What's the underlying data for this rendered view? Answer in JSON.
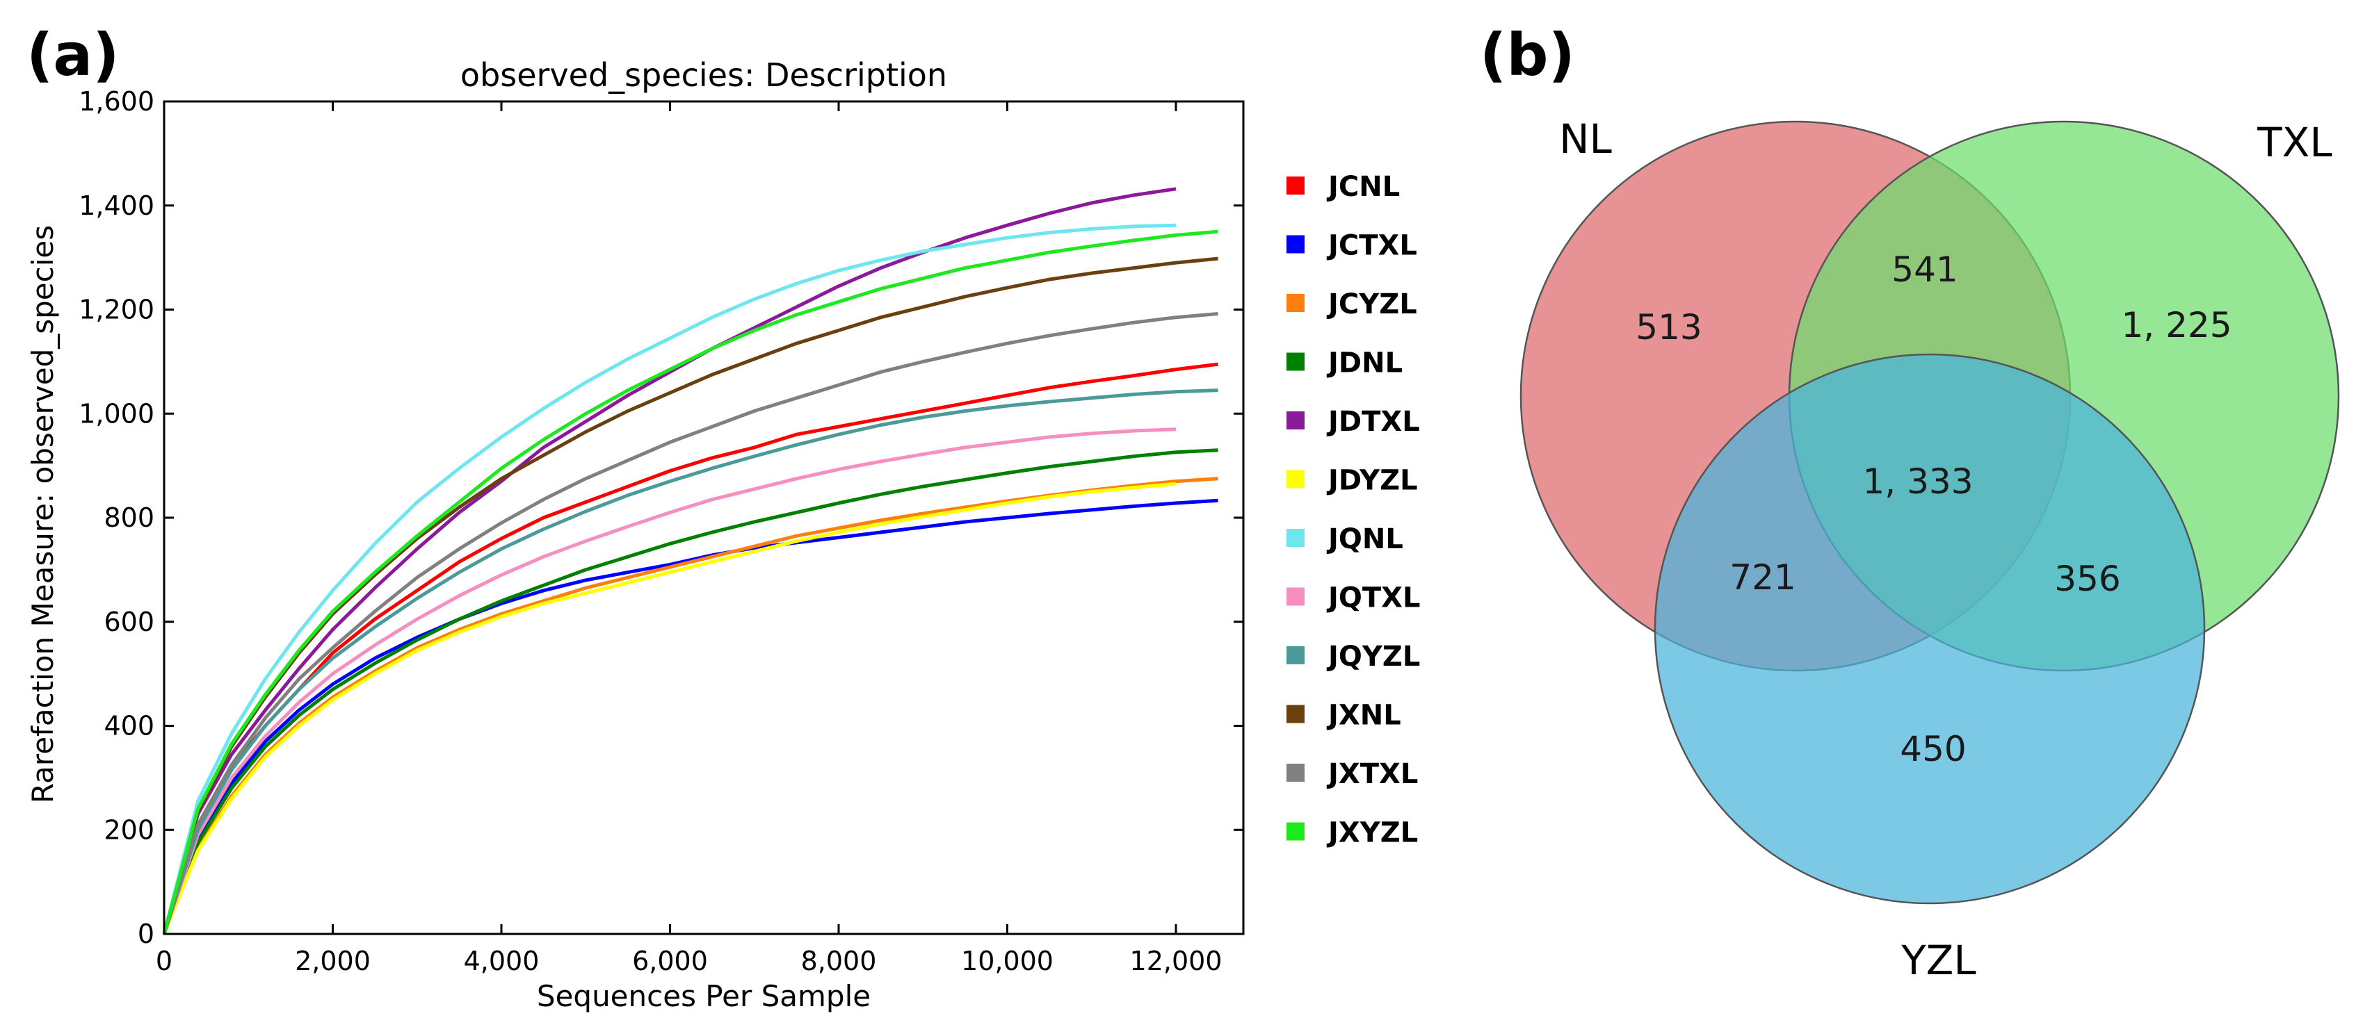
{
  "panels": {
    "a_label": "(a)",
    "b_label": "(b)"
  },
  "chart_data": [
    {
      "type": "line",
      "title": "observed_species: Description",
      "xlabel": "Sequences Per Sample",
      "ylabel": "Rarefaction Measure: observed_species",
      "xlim": [
        0,
        12800
      ],
      "ylim": [
        0,
        1600
      ],
      "x_ticks": [
        0,
        2000,
        4000,
        6000,
        8000,
        10000,
        12000
      ],
      "x_tick_labels": [
        "0",
        "2,000",
        "4,000",
        "6,000",
        "8,000",
        "10,000",
        "12,000"
      ],
      "y_ticks": [
        0,
        200,
        400,
        600,
        800,
        1000,
        1200,
        1400,
        1600
      ],
      "y_tick_labels": [
        "0",
        "200",
        "400",
        "600",
        "800",
        "1,000",
        "1,200",
        "1,400",
        "1,600"
      ],
      "grid": false,
      "legend_position": "outside-right",
      "x": [
        0,
        400,
        800,
        1200,
        1600,
        2000,
        2500,
        3000,
        3500,
        4000,
        4500,
        5000,
        5500,
        6000,
        6500,
        7000,
        7500,
        8000,
        8500,
        9000,
        9500,
        10000,
        10500,
        11000,
        11500,
        12000,
        12500
      ],
      "series": [
        {
          "name": "JCNL",
          "color": "#ff0000",
          "values": [
            0,
            210,
            320,
            400,
            470,
            540,
            605,
            660,
            715,
            760,
            800,
            830,
            860,
            890,
            915,
            935,
            960,
            975,
            990,
            1005,
            1020,
            1035,
            1050,
            1062,
            1073,
            1085,
            1095
          ]
        },
        {
          "name": "JCTXL",
          "color": "#0000ff",
          "values": [
            0,
            180,
            290,
            370,
            430,
            480,
            530,
            570,
            605,
            635,
            660,
            680,
            695,
            710,
            728,
            742,
            752,
            762,
            772,
            782,
            792,
            800,
            808,
            815,
            822,
            828,
            833
          ]
        },
        {
          "name": "JCYZL",
          "color": "#ff7f0e",
          "values": [
            0,
            165,
            265,
            345,
            405,
            455,
            505,
            550,
            585,
            615,
            640,
            665,
            685,
            705,
            725,
            745,
            765,
            780,
            795,
            808,
            820,
            832,
            843,
            853,
            862,
            870,
            875
          ]
        },
        {
          "name": "JDNL",
          "color": "#008000",
          "values": [
            0,
            175,
            280,
            360,
            420,
            470,
            520,
            565,
            605,
            640,
            670,
            700,
            725,
            750,
            772,
            792,
            810,
            828,
            845,
            860,
            873,
            886,
            898,
            908,
            918,
            926,
            930
          ]
        },
        {
          "name": "JDTXL",
          "color": "#8b1a9b",
          "values": [
            0,
            230,
            345,
            430,
            510,
            585,
            665,
            740,
            810,
            870,
            935,
            985,
            1035,
            1080,
            1125,
            1165,
            1205,
            1245,
            1280,
            1310,
            1338,
            1362,
            1385,
            1405,
            1420,
            1432,
            null
          ]
        },
        {
          "name": "JDYZL",
          "color": "#ffff00",
          "values": [
            0,
            160,
            260,
            340,
            400,
            450,
            500,
            545,
            580,
            610,
            635,
            655,
            675,
            695,
            715,
            735,
            755,
            772,
            788,
            802,
            815,
            828,
            840,
            850,
            858,
            865,
            null
          ]
        },
        {
          "name": "JQNL",
          "color": "#6ee6f0",
          "values": [
            0,
            255,
            385,
            490,
            580,
            660,
            750,
            830,
            895,
            955,
            1010,
            1060,
            1105,
            1145,
            1185,
            1220,
            1250,
            1275,
            1295,
            1312,
            1325,
            1338,
            1348,
            1355,
            1360,
            1362,
            null
          ]
        },
        {
          "name": "JQTXL",
          "color": "#f48fbf",
          "values": [
            0,
            190,
            300,
            380,
            445,
            500,
            555,
            605,
            650,
            690,
            725,
            755,
            783,
            810,
            835,
            855,
            875,
            893,
            908,
            922,
            935,
            945,
            955,
            962,
            967,
            970,
            null
          ]
        },
        {
          "name": "JQYZL",
          "color": "#4a9a9a",
          "values": [
            0,
            200,
            315,
            400,
            470,
            530,
            590,
            645,
            695,
            740,
            778,
            812,
            843,
            870,
            895,
            918,
            940,
            960,
            978,
            993,
            1005,
            1015,
            1023,
            1030,
            1037,
            1042,
            1045
          ]
        },
        {
          "name": "JXNL",
          "color": "#6b4010",
          "values": [
            0,
            235,
            360,
            455,
            540,
            615,
            690,
            760,
            820,
            875,
            920,
            965,
            1005,
            1040,
            1075,
            1105,
            1135,
            1160,
            1185,
            1205,
            1225,
            1242,
            1258,
            1270,
            1280,
            1290,
            1298
          ]
        },
        {
          "name": "JXTXL",
          "color": "#808080",
          "values": [
            0,
            210,
            325,
            415,
            490,
            550,
            620,
            685,
            740,
            790,
            835,
            875,
            910,
            945,
            975,
            1005,
            1030,
            1055,
            1080,
            1100,
            1118,
            1135,
            1150,
            1163,
            1175,
            1185,
            1192
          ]
        },
        {
          "name": "JXYZL",
          "color": "#1ee81e",
          "values": [
            0,
            240,
            365,
            460,
            545,
            620,
            695,
            765,
            830,
            895,
            950,
            1000,
            1045,
            1085,
            1125,
            1160,
            1190,
            1215,
            1240,
            1260,
            1280,
            1295,
            1310,
            1322,
            1333,
            1343,
            1350
          ]
        }
      ]
    },
    {
      "type": "venn",
      "sets": [
        {
          "name": "NL",
          "color": "#de6a6e"
        },
        {
          "name": "TXL",
          "color": "#6cdc6c"
        },
        {
          "name": "YZL",
          "color": "#4ab4dc"
        }
      ],
      "regions": [
        {
          "sets": [
            "NL"
          ],
          "value": "513"
        },
        {
          "sets": [
            "TXL"
          ],
          "value": "1, 225"
        },
        {
          "sets": [
            "YZL"
          ],
          "value": "450"
        },
        {
          "sets": [
            "NL",
            "TXL"
          ],
          "value": "541"
        },
        {
          "sets": [
            "NL",
            "YZL"
          ],
          "value": "721"
        },
        {
          "sets": [
            "TXL",
            "YZL"
          ],
          "value": "356"
        },
        {
          "sets": [
            "NL",
            "TXL",
            "YZL"
          ],
          "value": "1, 333"
        }
      ]
    }
  ]
}
